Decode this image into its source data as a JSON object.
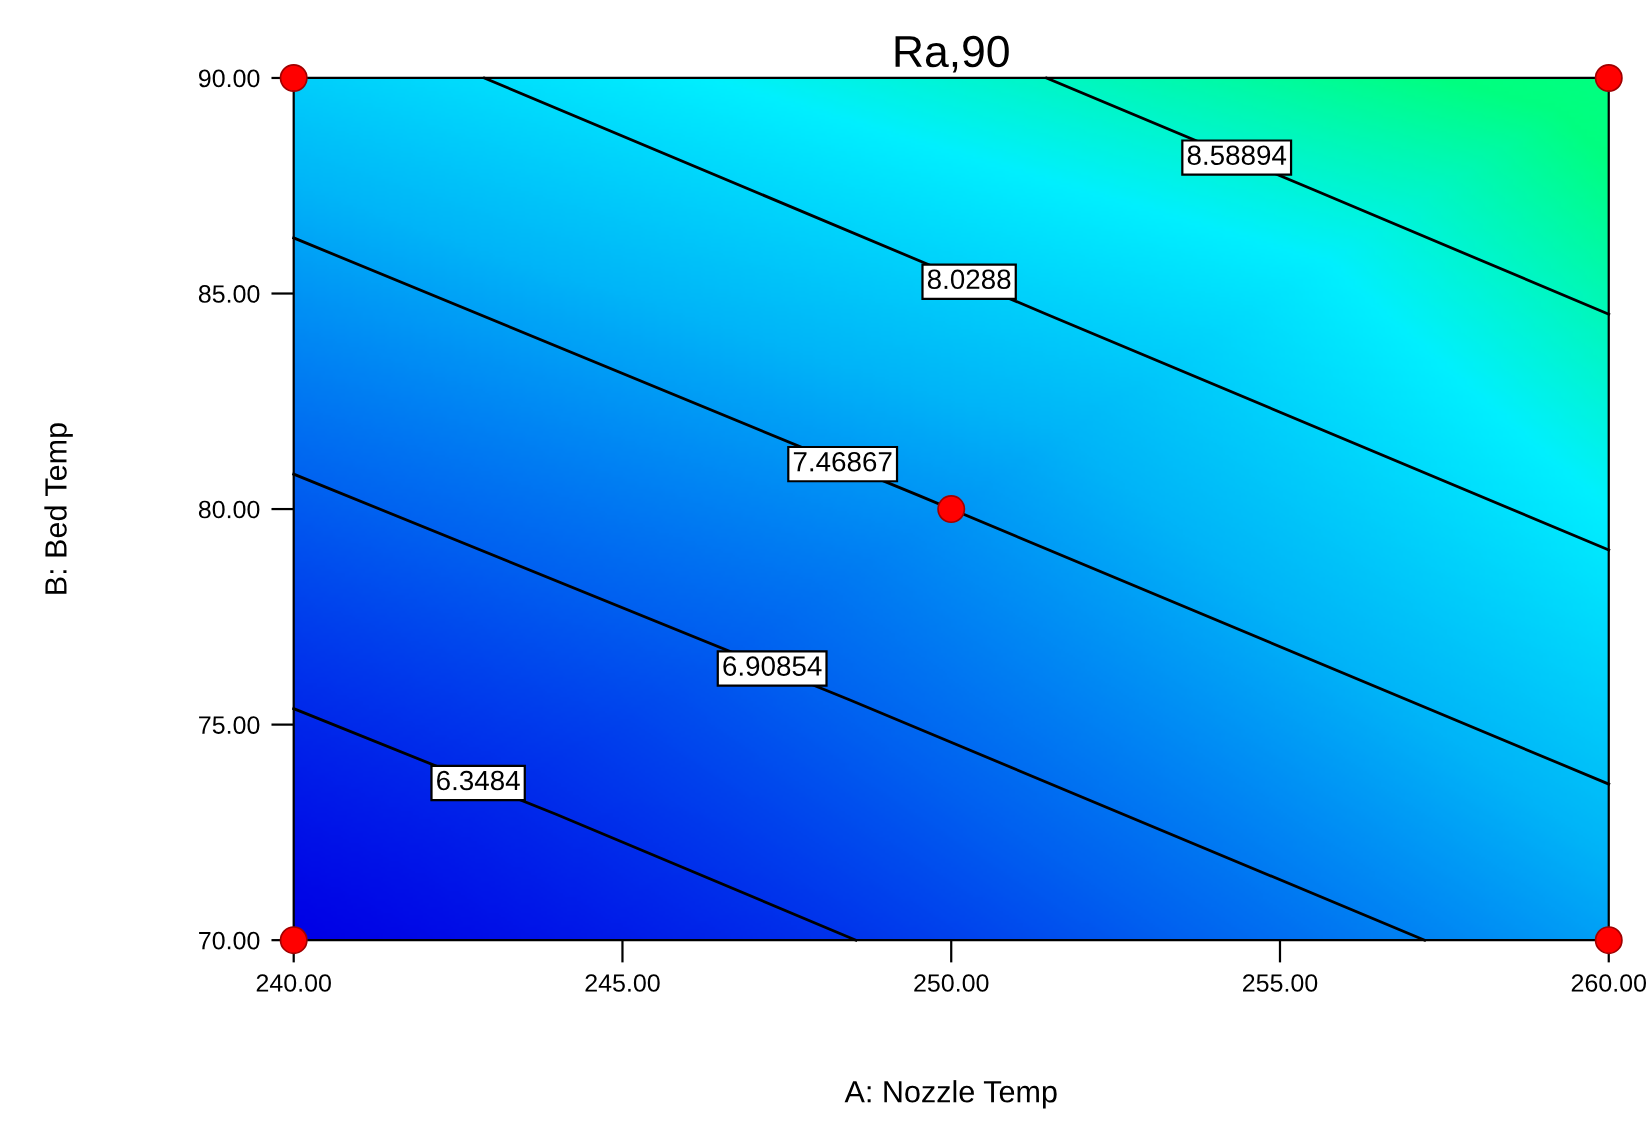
{
  "chart_data": {
    "type": "line",
    "title": "Ra,90",
    "xlabel": "A: Nozzle Temp",
    "ylabel": "B: Bed Temp",
    "xlim": [
      240,
      260
    ],
    "ylim": [
      70,
      90
    ],
    "xticks": [
      {
        "value": 240,
        "label": "240.00"
      },
      {
        "value": 245,
        "label": "245.00"
      },
      {
        "value": 250,
        "label": "250.00"
      },
      {
        "value": 255,
        "label": "255.00"
      },
      {
        "value": 260,
        "label": "260.00"
      }
    ],
    "yticks": [
      {
        "value": 70,
        "label": "70.00"
      },
      {
        "value": 75,
        "label": "75.00"
      },
      {
        "value": 80,
        "label": "80.00"
      },
      {
        "value": 85,
        "label": "85.00"
      },
      {
        "value": 90,
        "label": "90.00"
      }
    ],
    "grid": false,
    "series": [
      {
        "name": "6.3484",
        "color": "#000000",
        "marker": "none",
        "x": [
          240,
          243.99,
          248.55
        ],
        "values": [
          75.37,
          72.92,
          70
        ]
      },
      {
        "name": "6.90854",
        "color": "#000000",
        "marker": "none",
        "x": [
          240,
          248.46,
          257.2
        ],
        "values": [
          80.81,
          75.57,
          70
        ]
      },
      {
        "name": "7.46867",
        "color": "#000000",
        "marker": "none",
        "x": [
          240,
          249.53,
          260
        ],
        "values": [
          86.29,
          80.3,
          73.62
        ]
      },
      {
        "name": "8.0288",
        "color": "#000000",
        "marker": "none",
        "x": [
          242.9,
          251.45,
          260
        ],
        "values": [
          90,
          84.52,
          79.05
        ]
      },
      {
        "name": "8.58894",
        "color": "#000000",
        "marker": "none",
        "x": [
          251.45,
          255.52,
          260
        ],
        "values": [
          90,
          87.4,
          84.52
        ]
      },
      {
        "type": "scatter",
        "color": "#ff0000",
        "marker": "circle",
        "x": [
          240,
          240,
          250,
          260,
          260
        ],
        "values": [
          70,
          90,
          80,
          70,
          90
        ]
      }
    ]
  }
}
